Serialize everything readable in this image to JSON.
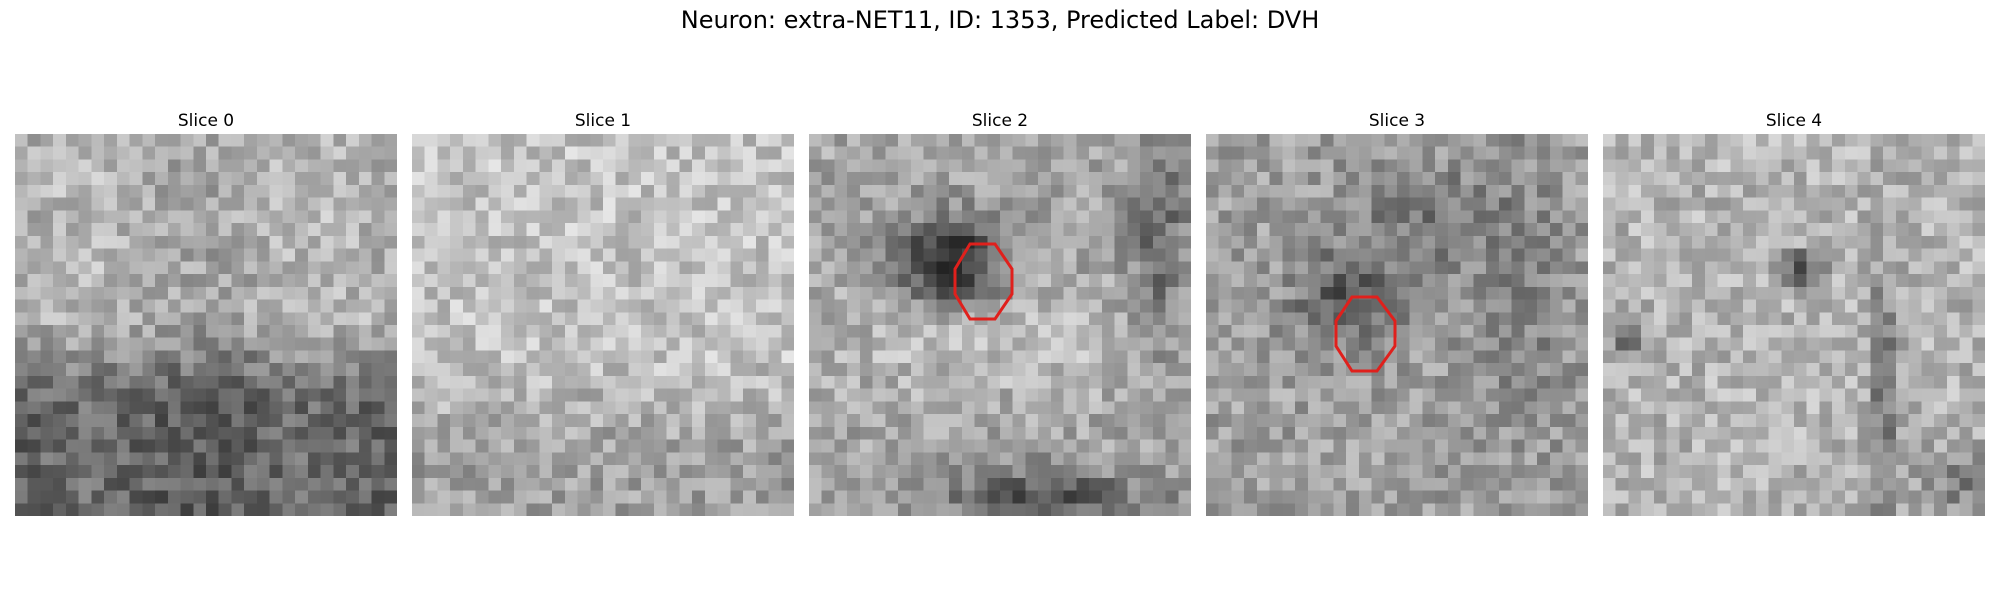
{
  "suptitle": "Neuron: extra-NET11, ID: 1353, Predicted Label: DVH",
  "panels": [
    {
      "title": "Slice 0",
      "roi": false
    },
    {
      "title": "Slice 1",
      "roi": false
    },
    {
      "title": "Slice 2",
      "roi": true
    },
    {
      "title": "Slice 3",
      "roi": true
    },
    {
      "title": "Slice 4",
      "roi": false
    }
  ],
  "roi_color": "#e0201c"
}
